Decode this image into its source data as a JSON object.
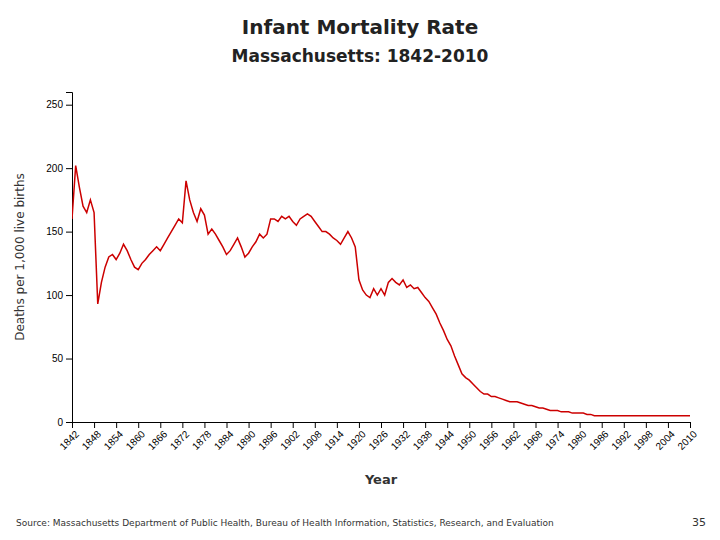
{
  "chart_data": {
    "type": "line",
    "title": "Infant Mortality Rate",
    "subtitle": "Massachusetts:  1842-2010",
    "xlabel": "Year",
    "ylabel": "Deaths per 1,000 live births",
    "annotations": [
      "Source:  Massachusetts Department of Public Health, Bureau of Health Information, Statistics, Research, and Evaluation",
      "35"
    ],
    "color": "#cc0000",
    "xlim": [
      1842,
      2010
    ],
    "xticks": [
      1842,
      1848,
      1854,
      1860,
      1866,
      1872,
      1878,
      1884,
      1890,
      1896,
      1902,
      1908,
      1914,
      1920,
      1926,
      1932,
      1938,
      1944,
      1950,
      1956,
      1962,
      1968,
      1974,
      1980,
      1986,
      1992,
      1998,
      2004,
      2010
    ],
    "ylim": [
      0,
      260
    ],
    "yticks": [
      0,
      50,
      100,
      150,
      200,
      250
    ],
    "x": [
      1842,
      1843,
      1844,
      1845,
      1846,
      1847,
      1848,
      1849,
      1850,
      1851,
      1852,
      1853,
      1854,
      1855,
      1856,
      1857,
      1858,
      1859,
      1860,
      1861,
      1862,
      1863,
      1864,
      1865,
      1866,
      1867,
      1868,
      1869,
      1870,
      1871,
      1872,
      1873,
      1874,
      1875,
      1876,
      1877,
      1878,
      1879,
      1880,
      1881,
      1882,
      1883,
      1884,
      1885,
      1886,
      1887,
      1888,
      1889,
      1890,
      1891,
      1892,
      1893,
      1894,
      1895,
      1896,
      1897,
      1898,
      1899,
      1900,
      1901,
      1902,
      1903,
      1904,
      1905,
      1906,
      1907,
      1908,
      1909,
      1910,
      1911,
      1912,
      1913,
      1914,
      1915,
      1916,
      1917,
      1918,
      1919,
      1920,
      1921,
      1922,
      1923,
      1924,
      1925,
      1926,
      1927,
      1928,
      1929,
      1930,
      1931,
      1932,
      1933,
      1934,
      1935,
      1936,
      1937,
      1938,
      1939,
      1940,
      1941,
      1942,
      1943,
      1944,
      1945,
      1946,
      1947,
      1948,
      1949,
      1950,
      1951,
      1952,
      1953,
      1954,
      1955,
      1956,
      1957,
      1958,
      1959,
      1960,
      1961,
      1962,
      1963,
      1964,
      1965,
      1966,
      1967,
      1968,
      1969,
      1970,
      1971,
      1972,
      1973,
      1974,
      1975,
      1976,
      1977,
      1978,
      1979,
      1980,
      1981,
      1982,
      1983,
      1984,
      1985,
      1986,
      1987,
      1988,
      1989,
      1990,
      1991,
      1992,
      1993,
      1994,
      1995,
      1996,
      1997,
      1998,
      1999,
      2000,
      2001,
      2002,
      2003,
      2004,
      2005,
      2006,
      2007,
      2008,
      2009,
      2010
    ],
    "values": [
      160,
      202,
      185,
      170,
      165,
      175,
      165,
      93,
      110,
      122,
      130,
      132,
      128,
      133,
      140,
      135,
      128,
      122,
      120,
      125,
      128,
      132,
      135,
      138,
      135,
      140,
      145,
      150,
      155,
      160,
      157,
      190,
      175,
      165,
      158,
      168,
      163,
      148,
      152,
      148,
      143,
      138,
      132,
      135,
      140,
      145,
      138,
      130,
      133,
      138,
      142,
      148,
      145,
      148,
      160,
      160,
      158,
      162,
      160,
      162,
      158,
      155,
      160,
      162,
      164,
      162,
      158,
      154,
      150,
      150,
      148,
      145,
      143,
      140,
      145,
      150,
      145,
      138,
      112,
      104,
      100,
      98,
      105,
      100,
      105,
      100,
      110,
      113,
      110,
      108,
      112,
      106,
      108,
      105,
      106,
      102,
      98,
      95,
      90,
      85,
      78,
      72,
      65,
      60,
      52,
      45,
      38,
      35,
      33,
      30,
      27,
      24,
      22,
      22,
      20,
      20,
      19,
      18,
      17,
      16,
      16,
      16,
      15,
      14,
      13,
      13,
      12,
      11,
      11,
      10,
      9,
      9,
      9,
      8,
      8,
      8,
      7,
      7,
      7,
      7,
      6,
      6,
      5,
      5,
      5,
      5,
      5,
      5,
      5,
      5,
      5,
      5,
      5,
      5,
      5,
      5,
      5,
      5,
      5,
      5,
      5,
      5,
      5,
      5,
      5,
      5,
      5,
      5,
      5
    ]
  }
}
